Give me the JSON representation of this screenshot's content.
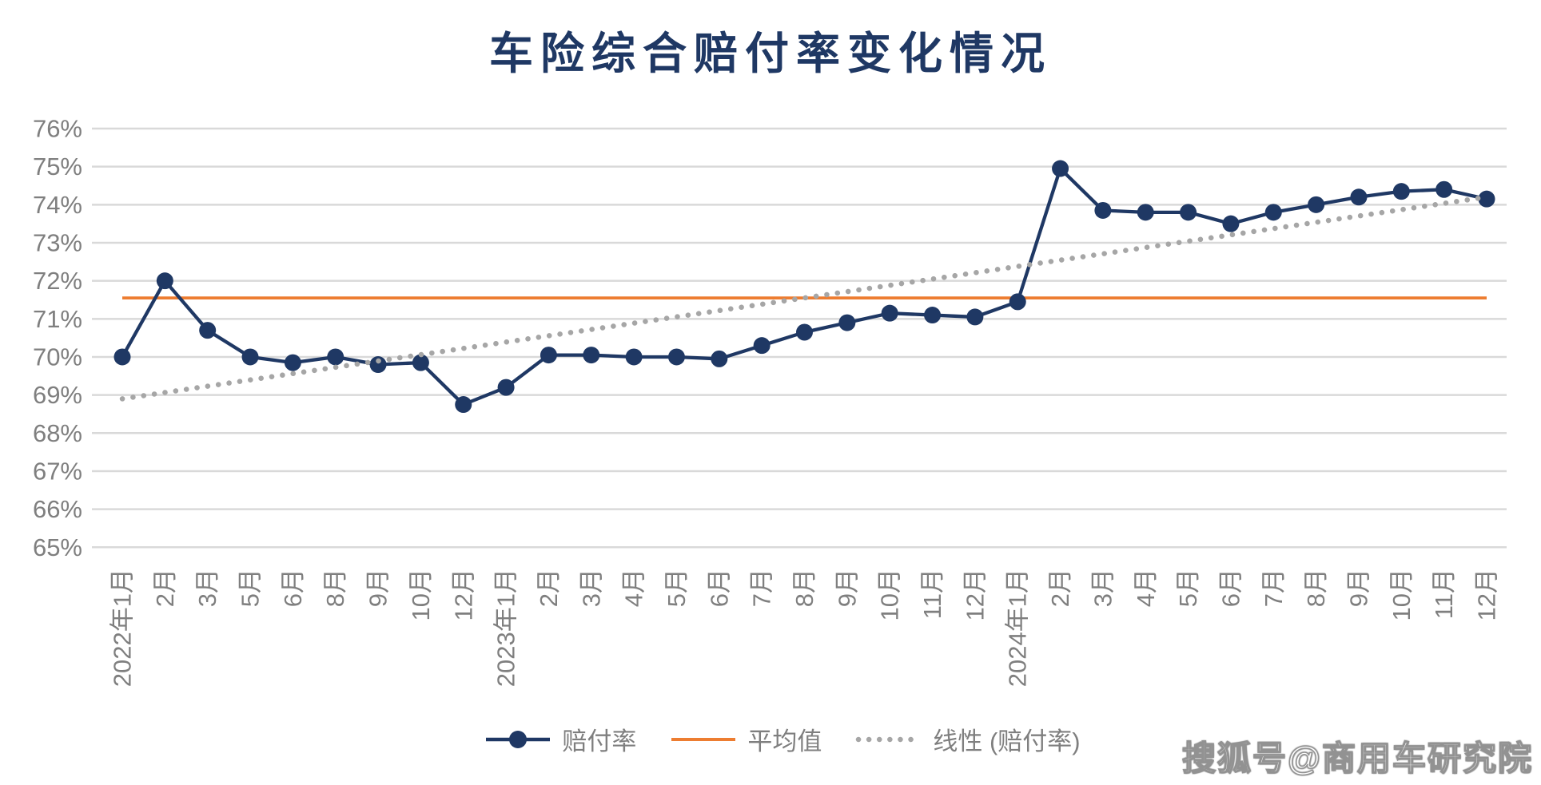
{
  "title": "车险综合赔付率变化情况",
  "watermark": "搜狐号@商用车研究院",
  "colors": {
    "series": "#1f3864",
    "average": "#ed7d31",
    "trend": "#a6a6a6",
    "gridline": "#d9d9d9",
    "axis_text": "#7f7f7f",
    "title_text": "#1f3864",
    "legend_text": "#7f7f7f"
  },
  "chart_data": {
    "type": "line",
    "title": "车险综合赔付率变化情况",
    "categories": [
      "2022年1月",
      "2月",
      "3月",
      "5月",
      "6月",
      "8月",
      "9月",
      "10月",
      "12月",
      "2023年1月",
      "2月",
      "3月",
      "4月",
      "5月",
      "6月",
      "7月",
      "8月",
      "9月",
      "10月",
      "11月",
      "12月",
      "2024年1月",
      "2月",
      "3月",
      "4月",
      "5月",
      "6月",
      "7月",
      "8月",
      "9月",
      "10月",
      "11月",
      "12月"
    ],
    "series": [
      {
        "name": "赔付率",
        "type": "line_with_markers",
        "color": "#1f3864",
        "values": [
          70.0,
          72.0,
          70.7,
          70.0,
          69.85,
          70.0,
          69.8,
          69.85,
          68.75,
          69.2,
          70.05,
          70.05,
          70.0,
          70.0,
          69.95,
          70.3,
          70.65,
          70.9,
          71.15,
          71.1,
          71.05,
          71.45,
          74.95,
          73.85,
          73.8,
          73.8,
          73.5,
          73.8,
          74.0,
          74.2,
          74.35,
          74.4,
          74.15
        ]
      },
      {
        "name": "平均值",
        "type": "constant_line",
        "color": "#ed7d31",
        "value": 71.55
      },
      {
        "name": "线性 (赔付率)",
        "type": "linear_trend",
        "color": "#a6a6a6",
        "start": 68.9,
        "end": 74.2
      }
    ],
    "ylim": [
      65,
      76
    ],
    "ytick_step": 1,
    "ytick_suffix": "%",
    "grid": true,
    "legend_position": "bottom",
    "x_labels_rotated": true
  }
}
